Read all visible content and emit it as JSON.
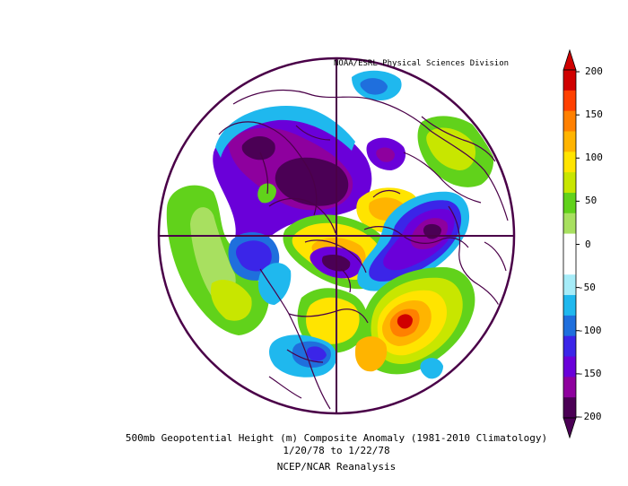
{
  "credit": "NOAA/ESRL Physical Sciences Division",
  "caption": {
    "line1": "500mb Geopotential Height (m) Composite Anomaly (1981-2010 Climatology)",
    "line2": "1/20/78  to 1/22/78",
    "line3": "NCEP/NCAR Reanalysis"
  },
  "colorbar": {
    "ticks": [
      "200",
      "150",
      "100",
      "50",
      "0",
      "-50",
      "-100",
      "-150",
      "-200"
    ],
    "colors": [
      "#4b0055",
      "#8e009e",
      "#6a00d9",
      "#3b25e8",
      "#1f6fdd",
      "#1fb8ee",
      "#a6ecf8",
      "#ffffff",
      "#ffffff",
      "#a8e060",
      "#61d21b",
      "#c8e600",
      "#ffe400",
      "#ffb400",
      "#ff8000",
      "#ff4000",
      "#d00000"
    ]
  },
  "colors": {
    "land_outline": "#4a0048",
    "frame": "#4a0048"
  }
}
